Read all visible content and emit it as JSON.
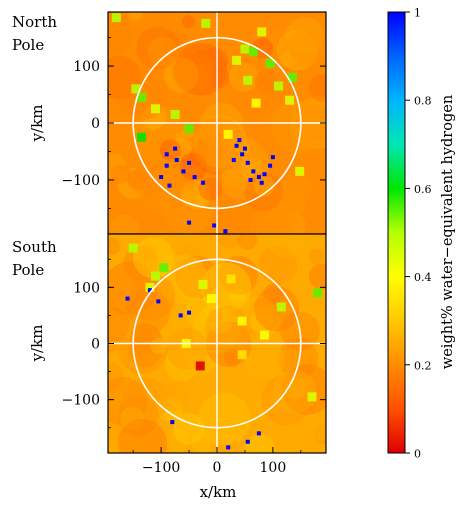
{
  "chart_data": [
    {
      "type": "heatmap",
      "panel_label": "North\nPole",
      "xlabel": "",
      "ylabel": "y/km",
      "xlim": [
        -195,
        195
      ],
      "ylim": [
        -195,
        195
      ],
      "yticks": [
        100,
        0,
        -100
      ],
      "ytick_labels": [
        "100",
        "0",
        "−100"
      ],
      "background_value": 0.2,
      "circle_radius_km": 150,
      "crosshair": true,
      "hydrogen_deposits": [
        {
          "x": -145,
          "y": 60,
          "value": 0.5
        },
        {
          "x": -135,
          "y": 45,
          "value": 0.55
        },
        {
          "x": -110,
          "y": 25,
          "value": 0.45
        },
        {
          "x": -75,
          "y": 15,
          "value": 0.5
        },
        {
          "x": -50,
          "y": -10,
          "value": 0.55
        },
        {
          "x": -135,
          "y": -25,
          "value": 0.6
        },
        {
          "x": 35,
          "y": 110,
          "value": 0.45
        },
        {
          "x": 50,
          "y": 130,
          "value": 0.5
        },
        {
          "x": 65,
          "y": 125,
          "value": 0.55
        },
        {
          "x": 95,
          "y": 105,
          "value": 0.55
        },
        {
          "x": 110,
          "y": 65,
          "value": 0.5
        },
        {
          "x": 70,
          "y": 35,
          "value": 0.4
        },
        {
          "x": 130,
          "y": 40,
          "value": 0.45
        },
        {
          "x": 55,
          "y": 75,
          "value": 0.5
        },
        {
          "x": 135,
          "y": 80,
          "value": 0.55
        },
        {
          "x": 148,
          "y": -85,
          "value": 0.45
        },
        {
          "x": -20,
          "y": 175,
          "value": 0.5
        },
        {
          "x": 80,
          "y": 160,
          "value": 0.45
        },
        {
          "x": 20,
          "y": -20,
          "value": 0.4
        },
        {
          "x": -180,
          "y": 185,
          "value": 0.5
        },
        {
          "x": -75,
          "y": -45,
          "value": 1.0
        },
        {
          "x": -72,
          "y": -65,
          "value": 1.0
        },
        {
          "x": -90,
          "y": -75,
          "value": 1.0
        },
        {
          "x": -100,
          "y": -95,
          "value": 1.0
        },
        {
          "x": -85,
          "y": -110,
          "value": 1.0
        },
        {
          "x": -60,
          "y": -85,
          "value": 1.0
        },
        {
          "x": -50,
          "y": -70,
          "value": 1.0
        },
        {
          "x": -40,
          "y": -95,
          "value": 1.0
        },
        {
          "x": -25,
          "y": -105,
          "value": 1.0
        },
        {
          "x": -90,
          "y": -55,
          "value": 1.0
        },
        {
          "x": 35,
          "y": -40,
          "value": 1.0
        },
        {
          "x": 45,
          "y": -55,
          "value": 1.0
        },
        {
          "x": 30,
          "y": -65,
          "value": 1.0
        },
        {
          "x": 55,
          "y": -70,
          "value": 1.0
        },
        {
          "x": 65,
          "y": -85,
          "value": 1.0
        },
        {
          "x": 75,
          "y": -95,
          "value": 1.0
        },
        {
          "x": 85,
          "y": -90,
          "value": 1.0
        },
        {
          "x": 80,
          "y": -105,
          "value": 1.0
        },
        {
          "x": 95,
          "y": -75,
          "value": 1.0
        },
        {
          "x": 60,
          "y": -100,
          "value": 1.0
        },
        {
          "x": 50,
          "y": -45,
          "value": 1.0
        },
        {
          "x": 40,
          "y": -30,
          "value": 1.0
        },
        {
          "x": -50,
          "y": -175,
          "value": 1.0
        },
        {
          "x": -5,
          "y": -180,
          "value": 1.0
        },
        {
          "x": 15,
          "y": -190,
          "value": 1.0
        },
        {
          "x": 100,
          "y": -60,
          "value": 1.0
        }
      ]
    },
    {
      "type": "heatmap",
      "panel_label": "South\nPole",
      "xlabel": "x/km",
      "ylabel": "y/km",
      "xlim": [
        -195,
        195
      ],
      "ylim": [
        -195,
        195
      ],
      "xticks": [
        -100,
        0,
        100
      ],
      "xtick_labels": [
        "−100",
        "0",
        "100"
      ],
      "yticks": [
        100,
        0,
        -100
      ],
      "ytick_labels": [
        "100",
        "0",
        "−100"
      ],
      "background_value": 0.25,
      "circle_radius_km": 150,
      "crosshair": true,
      "hydrogen_deposits": [
        {
          "x": -110,
          "y": 120,
          "value": 0.5
        },
        {
          "x": -95,
          "y": 135,
          "value": 0.55
        },
        {
          "x": -120,
          "y": 100,
          "value": 0.45
        },
        {
          "x": -25,
          "y": 105,
          "value": 0.45
        },
        {
          "x": -10,
          "y": 80,
          "value": 0.4
        },
        {
          "x": 45,
          "y": 40,
          "value": 0.4
        },
        {
          "x": 85,
          "y": 15,
          "value": 0.4
        },
        {
          "x": 25,
          "y": 115,
          "value": 0.35
        },
        {
          "x": -55,
          "y": 0,
          "value": 0.4
        },
        {
          "x": 45,
          "y": -20,
          "value": 0.35
        },
        {
          "x": 115,
          "y": 65,
          "value": 0.5
        },
        {
          "x": 180,
          "y": 90,
          "value": 0.55
        },
        {
          "x": 170,
          "y": -95,
          "value": 0.45
        },
        {
          "x": -150,
          "y": 170,
          "value": 0.5
        },
        {
          "x": -30,
          "y": -40,
          "value": 0.0
        },
        {
          "x": -160,
          "y": 80,
          "value": 1.0
        },
        {
          "x": -120,
          "y": 95,
          "value": 1.0
        },
        {
          "x": -105,
          "y": 75,
          "value": 1.0
        },
        {
          "x": -65,
          "y": 50,
          "value": 1.0
        },
        {
          "x": -50,
          "y": 55,
          "value": 1.0
        },
        {
          "x": -80,
          "y": -140,
          "value": 1.0
        },
        {
          "x": 20,
          "y": -185,
          "value": 1.0
        },
        {
          "x": 55,
          "y": -175,
          "value": 1.0
        },
        {
          "x": 75,
          "y": -160,
          "value": 1.0
        }
      ]
    }
  ],
  "colorbar": {
    "label": "weight% water−equivalent hydrogen",
    "min": 0,
    "max": 1,
    "ticks": [
      1,
      0.8,
      0.6,
      0.4,
      0.2,
      0
    ],
    "tick_labels": [
      "1",
      "0.8",
      "0.6",
      "0.4",
      "0.2",
      "0"
    ],
    "colormap": [
      "#dd0000",
      "#ff5000",
      "#ff8c00",
      "#ffc800",
      "#ffff00",
      "#b4ff00",
      "#00e600",
      "#00e6b4",
      "#00b4ff",
      "#0064ff",
      "#0000ff"
    ]
  }
}
